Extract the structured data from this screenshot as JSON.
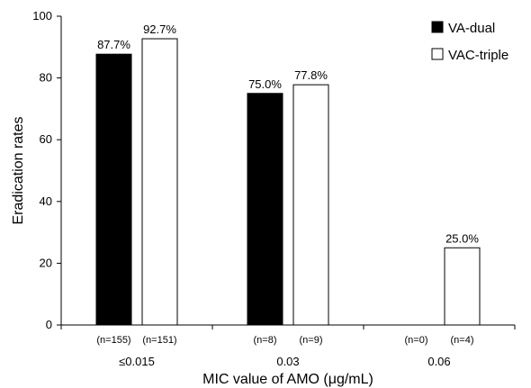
{
  "chart_data": {
    "type": "bar",
    "categories": [
      "≤0.015",
      "0.03",
      "0.06"
    ],
    "series": [
      {
        "name": "VA-dual",
        "color": "#000000",
        "values": [
          87.7,
          75.0,
          null
        ],
        "labels": [
          "87.7%",
          "75.0%",
          ""
        ],
        "n": [
          "(n=155)",
          "(n=8)",
          "(n=0)"
        ]
      },
      {
        "name": "VAC-triple",
        "color": "#ffffff",
        "values": [
          92.7,
          77.8,
          25.0
        ],
        "labels": [
          "92.7%",
          "77.8%",
          "25.0%"
        ],
        "n": [
          "(n=151)",
          "(n=9)",
          "(n=4)"
        ]
      }
    ],
    "xlabel": "MIC value of AMO (μg/mL)",
    "ylabel": "Eradication rates",
    "ylim": [
      0,
      100
    ],
    "yticks": [
      0,
      20,
      40,
      60,
      80,
      100
    ],
    "grid": false,
    "legend": "top-right"
  }
}
